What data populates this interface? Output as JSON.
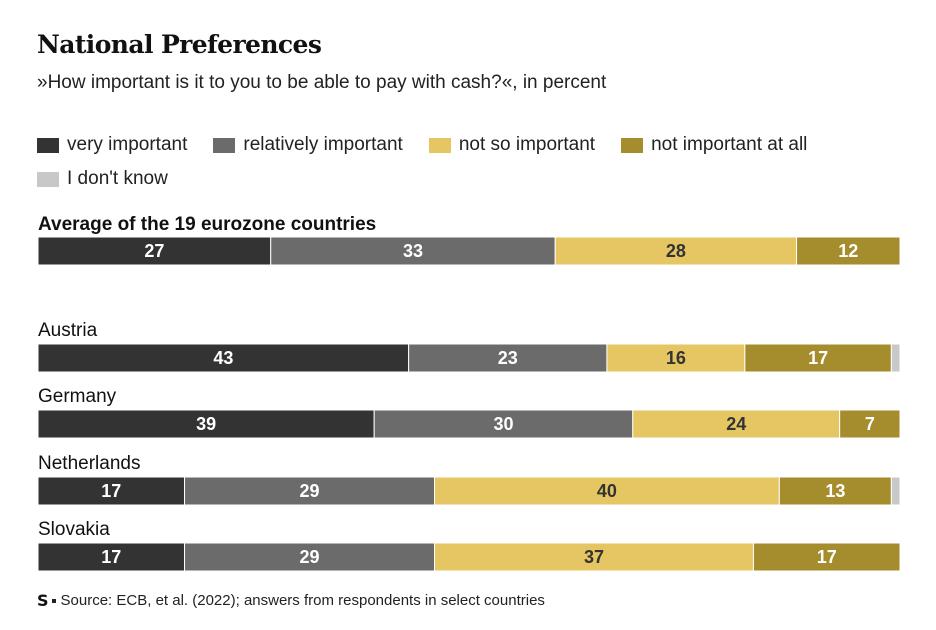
{
  "chart_data": {
    "type": "bar",
    "orientation": "horizontal-stacked-100",
    "title": "National Preferences",
    "subtitle": "»How important is it to you to be able to pay with cash?«, in percent",
    "xlim": [
      0,
      100
    ],
    "legend": [
      {
        "name": "very important",
        "color": "#333333"
      },
      {
        "name": "relatively important",
        "color": "#6b6b6b"
      },
      {
        "name": "not so important",
        "color": "#e5c663"
      },
      {
        "name": "not important at all",
        "color": "#a58d2d"
      },
      {
        "name": "I don't know",
        "color": "#c8c8c8"
      }
    ],
    "categories": [
      "Average of the 19 eurozone countries",
      "Austria",
      "Germany",
      "Netherlands",
      "Slovakia"
    ],
    "series": [
      {
        "name": "very important",
        "values": [
          27,
          43,
          39,
          17,
          17
        ]
      },
      {
        "name": "relatively important",
        "values": [
          33,
          23,
          30,
          29,
          29
        ]
      },
      {
        "name": "not so important",
        "values": [
          28,
          16,
          24,
          40,
          37
        ]
      },
      {
        "name": "not important at all",
        "values": [
          12,
          17,
          7,
          13,
          17
        ]
      },
      {
        "name": "I don't know",
        "values": [
          0,
          1,
          0,
          1,
          0
        ]
      }
    ],
    "value_labels": [
      [
        "27",
        "33",
        "28",
        "12",
        ""
      ],
      [
        "43",
        "23",
        "16",
        "17",
        ""
      ],
      [
        "39",
        "30",
        "24",
        "7",
        ""
      ],
      [
        "17",
        "29",
        "40",
        "13",
        ""
      ],
      [
        "17",
        "29",
        "37",
        "17",
        ""
      ]
    ],
    "source": "Source: ECB, et al. (2022); answers from respondents in select countries",
    "logo_text": "S"
  }
}
